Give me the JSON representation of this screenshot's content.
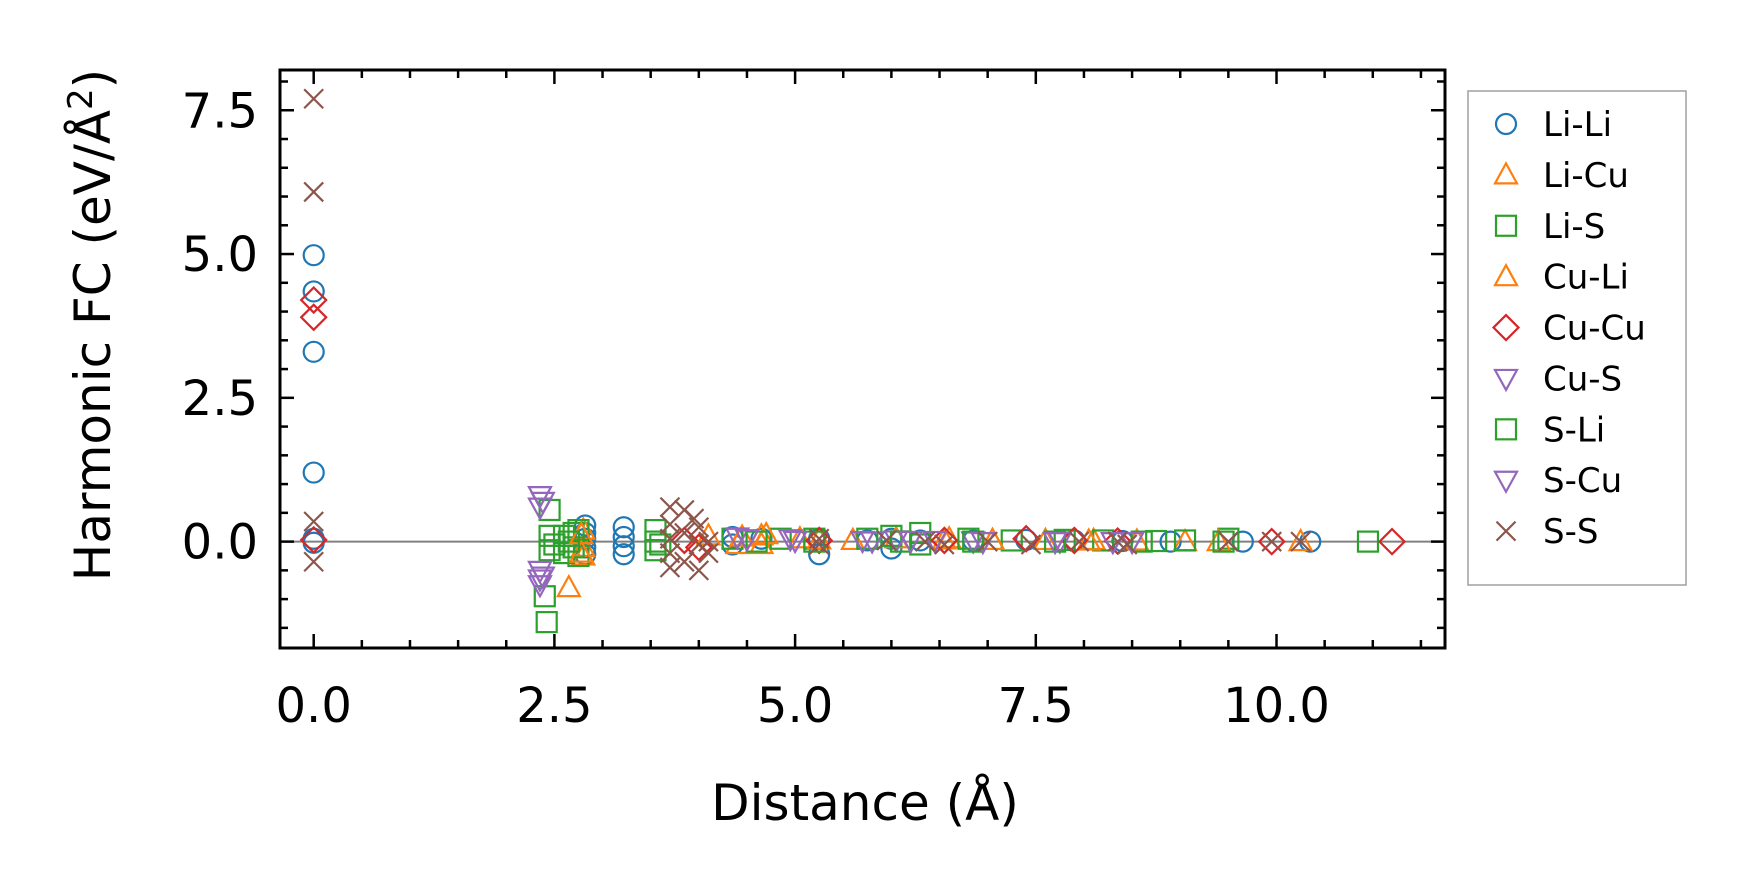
{
  "chart_data": {
    "type": "scatter",
    "xlabel": "Distance (Å)",
    "ylabel_main": "Harmonic FC (eV/Å",
    "ylabel_sup": "2",
    "ylabel_close": ")",
    "xlim": [
      -0.35,
      11.75
    ],
    "ylim": [
      -1.85,
      8.2
    ],
    "x_ticks": [
      {
        "value": 0.0,
        "label": "0.0"
      },
      {
        "value": 2.5,
        "label": "2.5"
      },
      {
        "value": 5.0,
        "label": "5.0"
      },
      {
        "value": 7.5,
        "label": "7.5"
      },
      {
        "value": 10.0,
        "label": "10.0"
      }
    ],
    "y_ticks": [
      {
        "value": 0.0,
        "label": "0.0"
      },
      {
        "value": 2.5,
        "label": "2.5"
      },
      {
        "value": 5.0,
        "label": "5.0"
      },
      {
        "value": 7.5,
        "label": "7.5"
      }
    ],
    "x_minor_step": 0.5,
    "y_minor_step": 0.5,
    "zero_line": true,
    "grid": false,
    "legend_position": "outside-right",
    "series": [
      {
        "name": "Li-Li",
        "marker": "circle",
        "color": "#1f77b4",
        "points": [
          [
            0,
            4.98
          ],
          [
            0,
            4.35
          ],
          [
            0,
            3.3
          ],
          [
            0,
            1.2
          ],
          [
            0,
            0.05
          ],
          [
            0,
            -0.02
          ],
          [
            2.82,
            0.28
          ],
          [
            2.82,
            0.15
          ],
          [
            2.82,
            0.05
          ],
          [
            2.82,
            -0.1
          ],
          [
            2.82,
            -0.22
          ],
          [
            3.22,
            0.25
          ],
          [
            3.22,
            0.08
          ],
          [
            3.22,
            -0.08
          ],
          [
            3.22,
            -0.22
          ],
          [
            4.35,
            0.08
          ],
          [
            4.35,
            -0.05
          ],
          [
            4.65,
            0.05
          ],
          [
            5.25,
            0.05
          ],
          [
            5.25,
            -0.22
          ],
          [
            5.75,
            0.02
          ],
          [
            6.0,
            -0.12
          ],
          [
            6.0,
            0.05
          ],
          [
            6.3,
            0.02
          ],
          [
            6.85,
            0.02
          ],
          [
            7.4,
            0.03
          ],
          [
            7.9,
            0.02
          ],
          [
            8.4,
            0.01
          ],
          [
            8.9,
            0.0
          ],
          [
            9.65,
            0.0
          ],
          [
            10.35,
            0.0
          ]
        ]
      },
      {
        "name": "Li-Cu",
        "marker": "triangle-up",
        "color": "#ff7f0e",
        "points": [
          [
            2.65,
            -0.8
          ],
          [
            2.8,
            0.2
          ],
          [
            2.8,
            -0.1
          ],
          [
            2.8,
            -0.25
          ],
          [
            4.1,
            0.1
          ],
          [
            4.4,
            -0.05
          ],
          [
            4.65,
            0.1
          ],
          [
            4.65,
            -0.05
          ],
          [
            5.05,
            0.05
          ],
          [
            5.6,
            0.02
          ],
          [
            6.05,
            0.05
          ],
          [
            6.6,
            0.05
          ],
          [
            7.05,
            0.02
          ],
          [
            7.6,
            0.02
          ],
          [
            8.1,
            0.02
          ],
          [
            8.55,
            0.01
          ],
          [
            9.05,
            0.0
          ],
          [
            10.25,
            0.0
          ]
        ]
      },
      {
        "name": "Li-S",
        "marker": "square",
        "color": "#2ca02c",
        "points": [
          [
            2.42,
            -1.4
          ],
          [
            2.4,
            -0.95
          ],
          [
            2.45,
            0.55
          ],
          [
            2.45,
            0.1
          ],
          [
            2.45,
            -0.15
          ],
          [
            2.6,
            0.1
          ],
          [
            2.6,
            -0.2
          ],
          [
            2.7,
            0.15
          ],
          [
            2.7,
            -0.1
          ],
          [
            2.75,
            0.2
          ],
          [
            2.75,
            -0.25
          ],
          [
            3.55,
            0.2
          ],
          [
            3.55,
            0.0
          ],
          [
            3.55,
            -0.15
          ],
          [
            4.35,
            0.05
          ],
          [
            4.85,
            0.05
          ],
          [
            5.2,
            0.05
          ],
          [
            5.75,
            0.05
          ],
          [
            6.0,
            0.1
          ],
          [
            6.3,
            0.15
          ],
          [
            6.3,
            -0.05
          ],
          [
            6.8,
            0.05
          ],
          [
            7.25,
            0.02
          ],
          [
            7.8,
            0.03
          ],
          [
            8.2,
            0.02
          ],
          [
            8.75,
            0.01
          ],
          [
            9.05,
            0.02
          ],
          [
            9.5,
            0.05
          ],
          [
            10.95,
            0.0
          ]
        ]
      },
      {
        "name": "Cu-Li",
        "marker": "triangle-up",
        "color": "#ff7f0e",
        "points": [
          [
            2.78,
            0.12
          ],
          [
            2.78,
            -0.2
          ],
          [
            4.45,
            0.08
          ],
          [
            4.7,
            0.12
          ],
          [
            5.25,
            0.03
          ],
          [
            6.55,
            0.03
          ],
          [
            7.05,
            0.02
          ],
          [
            8.05,
            0.01
          ],
          [
            9.4,
            0.0
          ]
        ]
      },
      {
        "name": "Cu-Cu",
        "marker": "diamond",
        "color": "#d62728",
        "points": [
          [
            0,
            4.2
          ],
          [
            0,
            3.9
          ],
          [
            0,
            0.03
          ],
          [
            3.85,
            0.02
          ],
          [
            4.0,
            -0.1
          ],
          [
            5.25,
            0.02
          ],
          [
            6.55,
            0.02
          ],
          [
            7.4,
            0.05
          ],
          [
            7.9,
            0.02
          ],
          [
            8.35,
            0.01
          ],
          [
            9.95,
            0.0
          ],
          [
            11.2,
            0.0
          ]
        ]
      },
      {
        "name": "Cu-S",
        "marker": "triangle-down",
        "color": "#9467bd",
        "points": [
          [
            2.35,
            0.8
          ],
          [
            2.35,
            0.6
          ],
          [
            2.35,
            -0.5
          ],
          [
            2.35,
            -0.65
          ],
          [
            2.35,
            -0.75
          ],
          [
            4.4,
            0.08
          ],
          [
            4.95,
            0.05
          ],
          [
            5.7,
            0.02
          ],
          [
            6.05,
            0.03
          ],
          [
            6.45,
            0.02
          ],
          [
            6.85,
            0.01
          ],
          [
            7.75,
            0.01
          ],
          [
            8.3,
            0.0
          ]
        ]
      },
      {
        "name": "S-Li",
        "marker": "square",
        "color": "#2ca02c",
        "points": [
          [
            2.5,
            -0.05
          ],
          [
            2.65,
            0.0
          ],
          [
            3.6,
            -0.05
          ],
          [
            4.6,
            0.0
          ],
          [
            5.2,
            0.0
          ],
          [
            6.1,
            0.0
          ],
          [
            6.85,
            0.0
          ],
          [
            7.7,
            0.0
          ],
          [
            8.6,
            0.0
          ],
          [
            9.45,
            0.0
          ]
        ]
      },
      {
        "name": "S-Cu",
        "marker": "triangle-down",
        "color": "#9467bd",
        "points": [
          [
            2.38,
            0.7
          ],
          [
            2.38,
            -0.6
          ],
          [
            4.5,
            0.05
          ],
          [
            5.0,
            0.02
          ],
          [
            5.8,
            0.01
          ],
          [
            6.2,
            0.02
          ],
          [
            6.95,
            0.0
          ],
          [
            7.7,
            0.0
          ],
          [
            8.5,
            0.0
          ]
        ]
      },
      {
        "name": "S-S",
        "marker": "x",
        "color": "#8c564b",
        "points": [
          [
            0,
            7.7
          ],
          [
            0,
            6.08
          ],
          [
            0,
            0.35
          ],
          [
            0,
            -0.35
          ],
          [
            3.7,
            0.6
          ],
          [
            3.7,
            0.3
          ],
          [
            3.7,
            0.05
          ],
          [
            3.7,
            -0.2
          ],
          [
            3.7,
            -0.45
          ],
          [
            3.85,
            0.55
          ],
          [
            3.85,
            0.15
          ],
          [
            3.85,
            -0.35
          ],
          [
            4.0,
            0.25
          ],
          [
            4.0,
            -0.05
          ],
          [
            4.0,
            -0.5
          ],
          [
            3.95,
            0.4
          ],
          [
            4.1,
            0.0
          ],
          [
            4.1,
            -0.2
          ],
          [
            5.25,
            0.05
          ],
          [
            5.25,
            -0.05
          ],
          [
            5.95,
            0.02
          ],
          [
            6.35,
            0.0
          ],
          [
            6.55,
            -0.05
          ],
          [
            7.0,
            0.0
          ],
          [
            7.45,
            -0.05
          ],
          [
            7.95,
            0.0
          ],
          [
            8.35,
            0.0
          ],
          [
            8.45,
            -0.05
          ],
          [
            9.5,
            0.0
          ],
          [
            9.95,
            0.0
          ],
          [
            10.25,
            0.0
          ]
        ]
      }
    ]
  }
}
